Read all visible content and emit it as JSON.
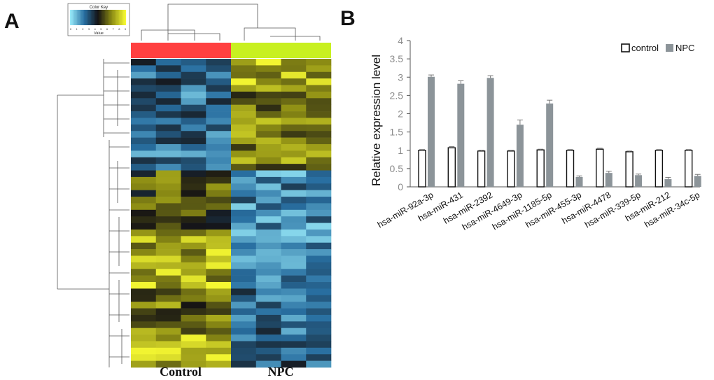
{
  "panels": {
    "left_label": "A",
    "right_label": "B"
  },
  "colors": {
    "control_bar": "#ff4040",
    "npc_bar": "#c8f020",
    "bar_fill_npc": "#8c9499",
    "axis_text": "#8c8c8c"
  },
  "heatmap": {
    "color_key": {
      "title": "Color Key",
      "xlabel": "Value",
      "ticks": [
        "0",
        "1",
        "2",
        "3",
        "4",
        "5",
        "6",
        "7",
        "8",
        "9"
      ]
    },
    "groups": [
      "Control",
      "NPC"
    ]
  },
  "chart_data": {
    "type": "bar",
    "title": "",
    "xlabel": "",
    "ylabel": "Relative expression level",
    "ylim": [
      0,
      4
    ],
    "yticks": [
      "0",
      "0.5",
      "1",
      "1.5",
      "2",
      "2.5",
      "3",
      "3.5",
      "4"
    ],
    "legend_position": "top-right",
    "categories": [
      "hsa-miR-92a-3p",
      "hsa-miR-431",
      "hsa-miR-2392",
      "hsa-miR-4649-3p",
      "hsa-miR-1185-5p",
      "hsa-miR-455-3p",
      "hsa-miR-4478",
      "hsa-miR-339-5p",
      "hsa-miR-212",
      "hsa-miR-34c-5p"
    ],
    "series": [
      {
        "name": "control",
        "values": [
          1.0,
          1.07,
          0.98,
          0.98,
          1.01,
          1.0,
          1.03,
          0.96,
          1.0,
          1.0
        ],
        "errors": [
          0.02,
          0.03,
          0.02,
          0.02,
          0.02,
          0.02,
          0.03,
          0.02,
          0.02,
          0.02
        ]
      },
      {
        "name": "NPC",
        "values": [
          3.01,
          2.82,
          2.98,
          1.7,
          2.28,
          0.27,
          0.38,
          0.32,
          0.21,
          0.3
        ],
        "errors": [
          0.05,
          0.08,
          0.06,
          0.13,
          0.09,
          0.03,
          0.05,
          0.03,
          0.05,
          0.04
        ]
      }
    ]
  }
}
